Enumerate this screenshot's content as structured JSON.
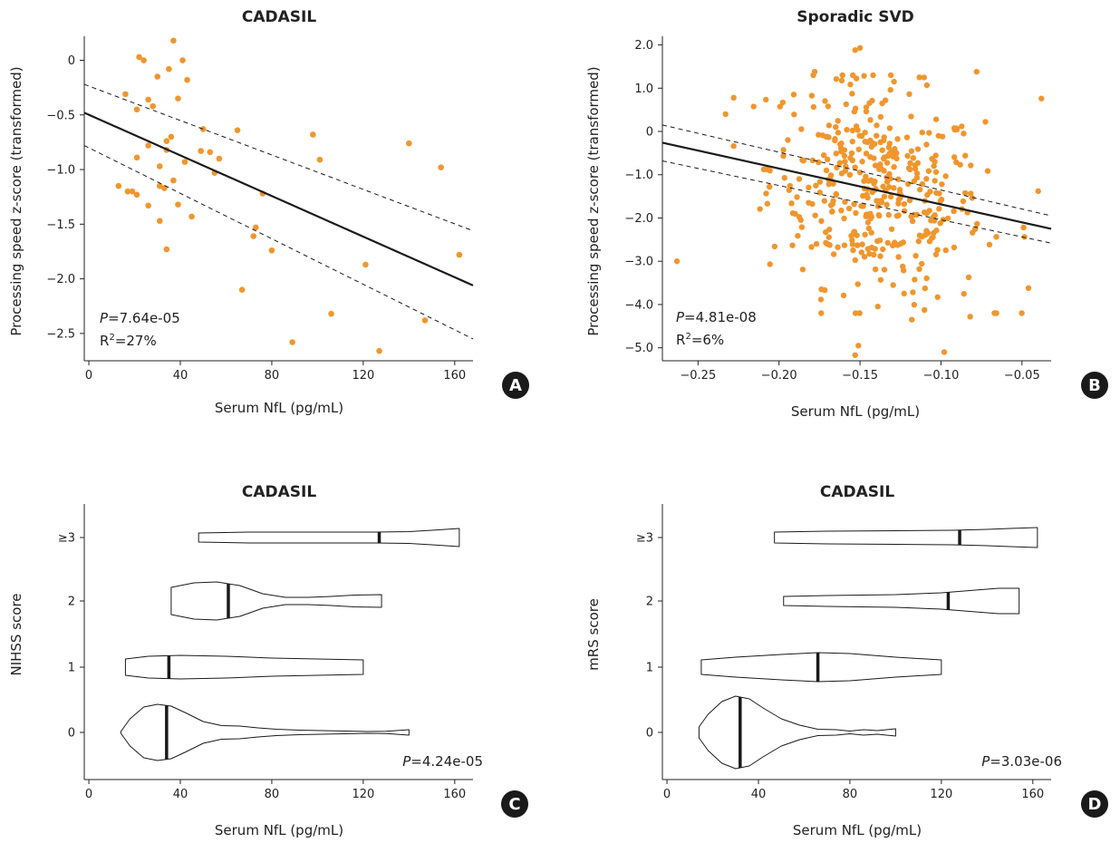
{
  "figure": {
    "panels": [
      {
        "label": "A",
        "title": "CADASIL",
        "xlabel": "Serum NfL (pg/mL)",
        "ylabel": "Processing speed z-score (transformed)",
        "stats": {
          "p_italic": "P",
          "p_rest": "=7.64e-05",
          "r2_prefix": "R",
          "r2_sup": "2",
          "r2_rest": "=27%"
        }
      },
      {
        "label": "B",
        "title": "Sporadic SVD",
        "xlabel": "Serum NfL (pg/mL)",
        "ylabel": "Processing speed z-score (transformed)",
        "stats": {
          "p_italic": "P",
          "p_rest": "=4.81e-08",
          "r2_prefix": "R",
          "r2_sup": "2",
          "r2_rest": "=6%"
        }
      },
      {
        "label": "C",
        "title": "CADASIL",
        "xlabel": "Serum NfL (pg/mL)",
        "ylabel": "NIHSS score",
        "stats": {
          "p_italic": "P",
          "p_rest": "=4.24e-05"
        }
      },
      {
        "label": "D",
        "title": "CADASIL",
        "xlabel": "Serum NfL (pg/mL)",
        "ylabel": "mRS score",
        "stats": {
          "p_italic": "P",
          "p_rest": "=3.03e-06"
        }
      }
    ]
  },
  "colors": {
    "point": "#f0962d",
    "line": "#1a1a1a",
    "axis": "#222222",
    "badge": "#1a1a1a"
  },
  "chart_data": [
    {
      "type": "scatter",
      "panel": "A",
      "title": "CADASIL",
      "xlabel": "Serum NfL (pg/mL)",
      "ylabel": "Processing speed z-score (transformed)",
      "xlim": [
        -2,
        168
      ],
      "ylim": [
        -2.75,
        0.22
      ],
      "xticks": [
        0,
        40,
        80,
        120,
        160
      ],
      "xtick_labels": [
        "0",
        "40",
        "80",
        "120",
        "160"
      ],
      "yticks": [
        0,
        -0.5,
        -1.0,
        -1.5,
        -2.0,
        -2.5
      ],
      "ytick_labels": [
        "0",
        "−0.5",
        "−1.0",
        "−1.5",
        "−2.0",
        "−2.5"
      ],
      "points": [
        [
          22,
          0.03
        ],
        [
          24,
          0.0
        ],
        [
          37,
          0.18
        ],
        [
          41,
          0.0
        ],
        [
          35,
          -0.08
        ],
        [
          43,
          -0.18
        ],
        [
          30,
          -0.15
        ],
        [
          16,
          -0.31
        ],
        [
          26,
          -0.36
        ],
        [
          28,
          -0.42
        ],
        [
          21,
          -0.45
        ],
        [
          39,
          -0.35
        ],
        [
          50,
          -0.63
        ],
        [
          65,
          -0.64
        ],
        [
          98,
          -0.68
        ],
        [
          36,
          -0.7
        ],
        [
          34,
          -0.74
        ],
        [
          26,
          -0.78
        ],
        [
          31,
          -0.97
        ],
        [
          49,
          -0.83
        ],
        [
          53,
          -0.84
        ],
        [
          34,
          -0.82
        ],
        [
          42,
          -0.93
        ],
        [
          57,
          -0.9
        ],
        [
          101,
          -0.91
        ],
        [
          140,
          -0.76
        ],
        [
          154,
          -0.98
        ],
        [
          21,
          -0.89
        ],
        [
          55,
          -1.03
        ],
        [
          37,
          -1.1
        ],
        [
          31,
          -1.15
        ],
        [
          13,
          -1.15
        ],
        [
          33,
          -1.17
        ],
        [
          17,
          -1.2
        ],
        [
          19,
          -1.2
        ],
        [
          21,
          -1.23
        ],
        [
          76,
          -1.22
        ],
        [
          39,
          -1.32
        ],
        [
          26,
          -1.33
        ],
        [
          31,
          -1.47
        ],
        [
          45,
          -1.43
        ],
        [
          73,
          -1.53
        ],
        [
          72,
          -1.61
        ],
        [
          34,
          -1.73
        ],
        [
          80,
          -1.74
        ],
        [
          162,
          -1.78
        ],
        [
          121,
          -1.87
        ],
        [
          67,
          -2.1
        ],
        [
          106,
          -2.32
        ],
        [
          147,
          -2.38
        ],
        [
          89,
          -2.58
        ],
        [
          127,
          -2.66
        ]
      ],
      "fit_line": [
        [
          -2,
          -0.48
        ],
        [
          168,
          -2.06
        ]
      ],
      "ci_upper": [
        [
          -2,
          -0.22
        ],
        [
          168,
          -1.56
        ]
      ],
      "ci_lower": [
        [
          -2,
          -0.78
        ],
        [
          168,
          -2.55
        ]
      ]
    },
    {
      "type": "scatter",
      "panel": "B",
      "title": "Sporadic SVD",
      "xlabel": "Serum NfL (pg/mL)",
      "ylabel": "Processing speed z-score (transformed)",
      "xlim": [
        -0.272,
        -0.032
      ],
      "ylim": [
        -5.3,
        2.2
      ],
      "xticks": [
        -0.25,
        -0.2,
        -0.15,
        -0.1,
        -0.05
      ],
      "xtick_labels": [
        "−0.25",
        "−0.20",
        "−0.15",
        "−0.10",
        "−0.05"
      ],
      "yticks": [
        2,
        1,
        0,
        -1,
        -2,
        -3,
        -4,
        -5
      ],
      "ytick_labels": [
        "2.0",
        "1.0",
        "0",
        "−1.0",
        "−2.0",
        "−3.0",
        "−4.0",
        "−5.0"
      ],
      "cloud": {
        "n": 400,
        "x_center": -0.14,
        "x_sd": 0.033,
        "y_center": -1.35,
        "y_sd": 1.22,
        "slope": -8.2
      },
      "points": [
        [
          -0.153,
          1.88
        ],
        [
          -0.15,
          1.93
        ],
        [
          -0.078,
          1.38
        ],
        [
          -0.038,
          0.76
        ],
        [
          -0.233,
          0.4
        ],
        [
          -0.263,
          -3.0
        ],
        [
          -0.046,
          -3.62
        ],
        [
          -0.098,
          -5.1
        ],
        [
          -0.153,
          -5.17
        ],
        [
          -0.151,
          -4.95
        ],
        [
          -0.04,
          -1.38
        ],
        [
          -0.049,
          -2.22
        ],
        [
          -0.118,
          -4.35
        ],
        [
          -0.067,
          -4.2
        ],
        [
          -0.082,
          -4.28
        ],
        [
          -0.178,
          1.38
        ],
        [
          -0.129,
          1.15
        ],
        [
          -0.103,
          0.28
        ]
      ],
      "fit_line": [
        [
          -0.272,
          -0.26
        ],
        [
          -0.032,
          -2.25
        ]
      ],
      "ci_upper": [
        [
          -0.272,
          0.15
        ],
        [
          -0.032,
          -1.95
        ]
      ],
      "ci_lower": [
        [
          -0.272,
          -0.68
        ],
        [
          -0.032,
          -2.58
        ]
      ]
    },
    {
      "type": "violin",
      "panel": "C",
      "title": "CADASIL",
      "xlabel": "Serum NfL (pg/mL)",
      "ylabel": "NIHSS score",
      "xlim": [
        -2,
        168
      ],
      "xticks": [
        0,
        40,
        80,
        120,
        160
      ],
      "xtick_labels": [
        "0",
        "40",
        "80",
        "120",
        "160"
      ],
      "categories": [
        "0",
        "1",
        "2",
        "≥3"
      ],
      "violins": [
        {
          "category": "0",
          "min": 14,
          "max": 140,
          "median": 34,
          "profile": [
            [
              14,
              0.02
            ],
            [
              18,
              0.3
            ],
            [
              24,
              0.56
            ],
            [
              30,
              0.62
            ],
            [
              36,
              0.58
            ],
            [
              42,
              0.44
            ],
            [
              50,
              0.24
            ],
            [
              58,
              0.15
            ],
            [
              66,
              0.14
            ],
            [
              74,
              0.1
            ],
            [
              82,
              0.07
            ],
            [
              92,
              0.05
            ],
            [
              102,
              0.04
            ],
            [
              112,
              0.03
            ],
            [
              122,
              0.02
            ],
            [
              130,
              0.025
            ],
            [
              140,
              0.06
            ]
          ]
        },
        {
          "category": "1",
          "min": 16,
          "max": 120,
          "median": 35,
          "profile": [
            [
              16,
              0.18
            ],
            [
              26,
              0.24
            ],
            [
              40,
              0.26
            ],
            [
              60,
              0.24
            ],
            [
              80,
              0.2
            ],
            [
              100,
              0.18
            ],
            [
              110,
              0.17
            ],
            [
              120,
              0.16
            ]
          ]
        },
        {
          "category": "2",
          "min": 36,
          "max": 128,
          "median": 61,
          "profile": [
            [
              36,
              0.3
            ],
            [
              46,
              0.4
            ],
            [
              56,
              0.42
            ],
            [
              66,
              0.34
            ],
            [
              76,
              0.16
            ],
            [
              86,
              0.08
            ],
            [
              96,
              0.08
            ],
            [
              106,
              0.1
            ],
            [
              116,
              0.13
            ],
            [
              128,
              0.14
            ]
          ]
        },
        {
          "category": "≥3",
          "min": 48,
          "max": 162,
          "median": 127,
          "profile": [
            [
              48,
              0.1
            ],
            [
              70,
              0.12
            ],
            [
              100,
              0.12
            ],
            [
              125,
              0.12
            ],
            [
              140,
              0.13
            ],
            [
              150,
              0.16
            ],
            [
              162,
              0.2
            ]
          ]
        }
      ]
    },
    {
      "type": "violin",
      "panel": "D",
      "title": "CADASIL",
      "xlabel": "Serum NfL (pg/mL)",
      "ylabel": "mRS score",
      "xlim": [
        -2,
        168
      ],
      "xticks": [
        0,
        40,
        80,
        120,
        160
      ],
      "xtick_labels": [
        "0",
        "40",
        "80",
        "120",
        "160"
      ],
      "categories": [
        "0",
        "1",
        "2",
        "≥3"
      ],
      "violins": [
        {
          "category": "0",
          "min": 14,
          "max": 100,
          "median": 32,
          "profile": [
            [
              14,
              0.12
            ],
            [
              18,
              0.4
            ],
            [
              24,
              0.68
            ],
            [
              30,
              0.8
            ],
            [
              36,
              0.74
            ],
            [
              42,
              0.54
            ],
            [
              50,
              0.3
            ],
            [
              58,
              0.16
            ],
            [
              66,
              0.07
            ],
            [
              74,
              0.06
            ],
            [
              80,
              0.03
            ],
            [
              86,
              0.06
            ],
            [
              92,
              0.04
            ],
            [
              100,
              0.08
            ]
          ]
        },
        {
          "category": "1",
          "min": 15,
          "max": 120,
          "median": 66,
          "profile": [
            [
              15,
              0.16
            ],
            [
              30,
              0.22
            ],
            [
              50,
              0.28
            ],
            [
              66,
              0.32
            ],
            [
              80,
              0.3
            ],
            [
              100,
              0.22
            ],
            [
              120,
              0.16
            ]
          ]
        },
        {
          "category": "2",
          "min": 51,
          "max": 154,
          "median": 123,
          "profile": [
            [
              51,
              0.1
            ],
            [
              70,
              0.12
            ],
            [
              100,
              0.14
            ],
            [
              120,
              0.18
            ],
            [
              135,
              0.24
            ],
            [
              145,
              0.28
            ],
            [
              154,
              0.28
            ]
          ]
        },
        {
          "category": "≥3",
          "min": 47,
          "max": 162,
          "median": 128,
          "profile": [
            [
              47,
              0.12
            ],
            [
              70,
              0.14
            ],
            [
              100,
              0.15
            ],
            [
              125,
              0.16
            ],
            [
              140,
              0.18
            ],
            [
              150,
              0.2
            ],
            [
              162,
              0.22
            ]
          ]
        }
      ]
    }
  ]
}
